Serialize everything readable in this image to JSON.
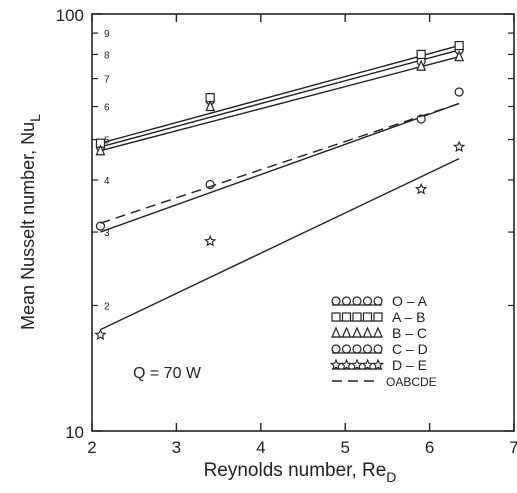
{
  "chart_data": {
    "type": "scatter",
    "title": "",
    "xlabel": "Reynolds number, Re",
    "xlabel_sub": "D",
    "ylabel": "Mean Nusselt number, Nu",
    "ylabel_sub": "L",
    "x_scale": "linear",
    "y_scale": "log",
    "xlim": [
      2,
      7
    ],
    "ylim": [
      10,
      100
    ],
    "x_ticks": [
      2,
      3,
      4,
      5,
      6,
      7
    ],
    "y_major_ticks": [
      10,
      100
    ],
    "y_minor_ticks": [
      2,
      3,
      4,
      5,
      6,
      7,
      8,
      9
    ],
    "annotation": "Q = 70 W",
    "legend_position": "bottom-right",
    "series": [
      {
        "name": "O – A",
        "marker": "circle",
        "x": [
          2.1,
          3.4,
          5.9,
          6.35
        ],
        "y": [
          48,
          62,
          77,
          82
        ],
        "fit": {
          "x": [
            2.1,
            6.35
          ],
          "y": [
            48,
            82
          ]
        }
      },
      {
        "name": "A – B",
        "marker": "square",
        "x": [
          2.1,
          3.4,
          5.9,
          6.35
        ],
        "y": [
          49,
          63,
          80,
          84
        ],
        "fit": {
          "x": [
            2.1,
            6.35
          ],
          "y": [
            49,
            84
          ]
        }
      },
      {
        "name": "B – C",
        "marker": "triangle",
        "x": [
          2.1,
          3.4,
          5.9,
          6.35
        ],
        "y": [
          47,
          60,
          75,
          79
        ],
        "fit": {
          "x": [
            2.1,
            6.35
          ],
          "y": [
            47,
            79
          ]
        }
      },
      {
        "name": "C – D",
        "marker": "circle",
        "x": [
          2.1,
          3.4,
          5.9,
          6.35
        ],
        "y": [
          31,
          39,
          56,
          65
        ],
        "fit": {
          "x": [
            2.1,
            6.35
          ],
          "y": [
            30,
            61
          ]
        }
      },
      {
        "name": "D – E",
        "marker": "star",
        "x": [
          2.1,
          3.4,
          5.9,
          6.35
        ],
        "y": [
          17,
          28.5,
          38,
          48
        ],
        "fit": {
          "x": [
            2.1,
            6.35
          ],
          "y": [
            17.5,
            45
          ]
        }
      },
      {
        "name": "OABCDE",
        "marker": "dashed-line",
        "x": [],
        "y": [],
        "fit": {
          "x": [
            2.1,
            6.35
          ],
          "y": [
            31.5,
            61
          ]
        }
      }
    ]
  }
}
